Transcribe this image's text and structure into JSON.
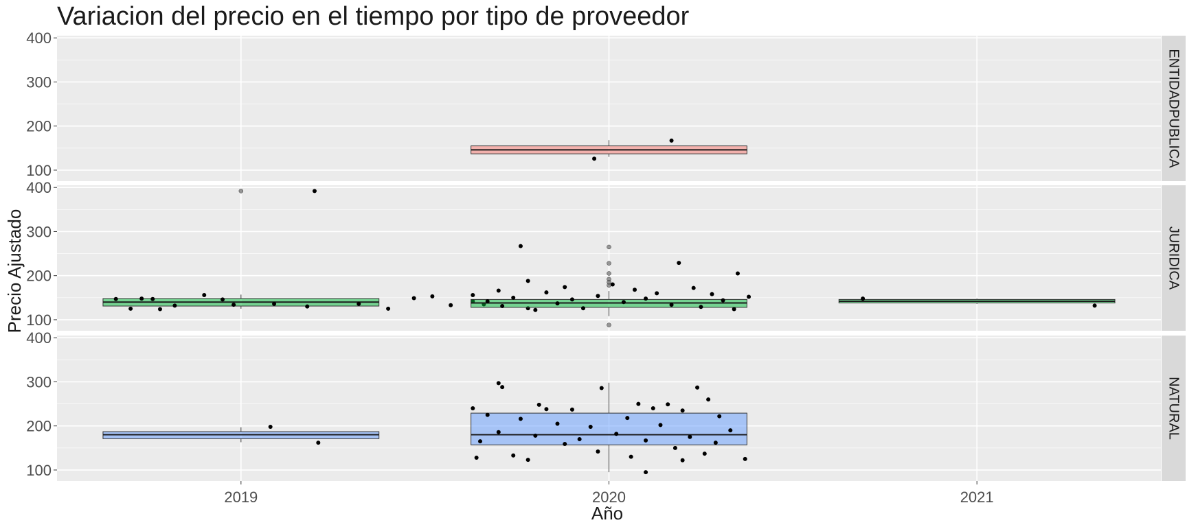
{
  "colors": {
    "panel_bg": "#EBEBEB",
    "grid": "#FFFFFF",
    "strip_bg": "#D9D9D9",
    "text": "#1A1A1A",
    "tick_text": "#4D4D4D",
    "ENTIDADPUBLICA": "#F8766D",
    "JURIDICA": "#00BA38",
    "NATURAL": "#619CFF"
  },
  "chart_data": {
    "type": "boxplot",
    "title": "Variacion del precio en el tiempo por tipo de proveedor",
    "xlabel": "Año",
    "ylabel": "Precio Ajustado",
    "categories": [
      "2019",
      "2020",
      "2021"
    ],
    "ylim": [
      75,
      405
    ],
    "yticks": [
      100,
      200,
      300,
      400
    ],
    "grid": true,
    "legend": "none",
    "facets": [
      {
        "name": "ENTIDADPUBLICA",
        "boxes": [
          {
            "x": "2020",
            "q1": 137,
            "median": 146,
            "q3": 155,
            "whisker_low": 130,
            "whisker_high": 168,
            "outliers": [],
            "points": [
              {
                "x": 2019.96,
                "y": 126
              },
              {
                "x": 2020.17,
                "y": 167
              }
            ]
          }
        ]
      },
      {
        "name": "JURIDICA",
        "boxes": [
          {
            "x": "2019",
            "q1": 131,
            "median": 140,
            "q3": 148,
            "whisker_low": 125,
            "whisker_high": 157,
            "outliers": [
              392
            ],
            "points": [
              {
                "x": 2018.66,
                "y": 147
              },
              {
                "x": 2018.7,
                "y": 125
              },
              {
                "x": 2018.73,
                "y": 148
              },
              {
                "x": 2018.76,
                "y": 147
              },
              {
                "x": 2018.78,
                "y": 124
              },
              {
                "x": 2018.82,
                "y": 132
              },
              {
                "x": 2018.9,
                "y": 156
              },
              {
                "x": 2018.95,
                "y": 146
              },
              {
                "x": 2018.98,
                "y": 134
              },
              {
                "x": 2019.09,
                "y": 136
              },
              {
                "x": 2019.18,
                "y": 130
              },
              {
                "x": 2019.32,
                "y": 136
              },
              {
                "x": 2019.4,
                "y": 125
              },
              {
                "x": 2019.47,
                "y": 149
              },
              {
                "x": 2019.52,
                "y": 153
              },
              {
                "x": 2019.57,
                "y": 133
              },
              {
                "x": 2019.63,
                "y": 142
              },
              {
                "x": 2019.66,
                "y": 135
              },
              {
                "x": 2019.78,
                "y": 126
              },
              {
                "x": 2019.2,
                "y": 392
              }
            ]
          },
          {
            "x": "2020",
            "q1": 128,
            "median": 138,
            "q3": 146,
            "whisker_low": 108,
            "whisker_high": 165,
            "outliers": [
              88,
              178,
              185,
              192,
              205,
              228,
              265
            ],
            "points": [
              {
                "x": 2019.76,
                "y": 267
              },
              {
                "x": 2020.19,
                "y": 229
              },
              {
                "x": 2020.35,
                "y": 205
              },
              {
                "x": 2019.78,
                "y": 188
              },
              {
                "x": 2020.01,
                "y": 180
              },
              {
                "x": 2019.88,
                "y": 174
              },
              {
                "x": 2020.23,
                "y": 172
              },
              {
                "x": 2020.07,
                "y": 168
              },
              {
                "x": 2019.7,
                "y": 166
              },
              {
                "x": 2019.83,
                "y": 162
              },
              {
                "x": 2020.13,
                "y": 160
              },
              {
                "x": 2020.28,
                "y": 158
              },
              {
                "x": 2019.63,
                "y": 156
              },
              {
                "x": 2019.97,
                "y": 154
              },
              {
                "x": 2020.38,
                "y": 152
              },
              {
                "x": 2019.74,
                "y": 150
              },
              {
                "x": 2020.1,
                "y": 148
              },
              {
                "x": 2019.9,
                "y": 146
              },
              {
                "x": 2020.31,
                "y": 144
              },
              {
                "x": 2019.67,
                "y": 142
              },
              {
                "x": 2020.04,
                "y": 140
              },
              {
                "x": 2019.86,
                "y": 137
              },
              {
                "x": 2020.17,
                "y": 134
              },
              {
                "x": 2019.71,
                "y": 131
              },
              {
                "x": 2020.25,
                "y": 129
              },
              {
                "x": 2019.93,
                "y": 126
              },
              {
                "x": 2020.34,
                "y": 124
              },
              {
                "x": 2019.8,
                "y": 122
              }
            ]
          },
          {
            "x": "2021",
            "q1": 138,
            "median": 142,
            "q3": 146,
            "whisker_low": 136,
            "whisker_high": 148,
            "outliers": [],
            "points": [
              {
                "x": 2020.69,
                "y": 148
              },
              {
                "x": 2021.32,
                "y": 132
              }
            ]
          }
        ]
      },
      {
        "name": "NATURAL",
        "boxes": [
          {
            "x": "2019",
            "q1": 171,
            "median": 180,
            "q3": 187,
            "whisker_low": 163,
            "whisker_high": 197,
            "outliers": [],
            "points": [
              {
                "x": 2019.08,
                "y": 198
              },
              {
                "x": 2019.21,
                "y": 162
              }
            ]
          },
          {
            "x": "2020",
            "q1": 157,
            "median": 180,
            "q3": 229,
            "whisker_low": 95,
            "whisker_high": 298,
            "outliers": [],
            "points": [
              {
                "x": 2019.7,
                "y": 297
              },
              {
                "x": 2019.71,
                "y": 288
              },
              {
                "x": 2020.24,
                "y": 287
              },
              {
                "x": 2019.98,
                "y": 286
              },
              {
                "x": 2020.27,
                "y": 260
              },
              {
                "x": 2019.81,
                "y": 248
              },
              {
                "x": 2020.08,
                "y": 250
              },
              {
                "x": 2020.16,
                "y": 249
              },
              {
                "x": 2019.83,
                "y": 238
              },
              {
                "x": 2019.9,
                "y": 237
              },
              {
                "x": 2020.12,
                "y": 240
              },
              {
                "x": 2020.2,
                "y": 235
              },
              {
                "x": 2019.63,
                "y": 240
              },
              {
                "x": 2020.3,
                "y": 222
              },
              {
                "x": 2019.67,
                "y": 225
              },
              {
                "x": 2019.76,
                "y": 216
              },
              {
                "x": 2020.05,
                "y": 218
              },
              {
                "x": 2019.86,
                "y": 205
              },
              {
                "x": 2020.14,
                "y": 202
              },
              {
                "x": 2019.95,
                "y": 198
              },
              {
                "x": 2020.33,
                "y": 190
              },
              {
                "x": 2019.7,
                "y": 186
              },
              {
                "x": 2020.02,
                "y": 182
              },
              {
                "x": 2019.8,
                "y": 178
              },
              {
                "x": 2020.22,
                "y": 175
              },
              {
                "x": 2019.92,
                "y": 170
              },
              {
                "x": 2020.1,
                "y": 167
              },
              {
                "x": 2019.65,
                "y": 165
              },
              {
                "x": 2020.29,
                "y": 162
              },
              {
                "x": 2019.88,
                "y": 159
              },
              {
                "x": 2020.18,
                "y": 150
              },
              {
                "x": 2019.97,
                "y": 142
              },
              {
                "x": 2020.26,
                "y": 137
              },
              {
                "x": 2019.74,
                "y": 133
              },
              {
                "x": 2020.06,
                "y": 130
              },
              {
                "x": 2019.64,
                "y": 128
              },
              {
                "x": 2020.37,
                "y": 125
              },
              {
                "x": 2019.78,
                "y": 123
              },
              {
                "x": 2020.2,
                "y": 122
              },
              {
                "x": 2020.1,
                "y": 95
              }
            ]
          }
        ]
      }
    ]
  }
}
